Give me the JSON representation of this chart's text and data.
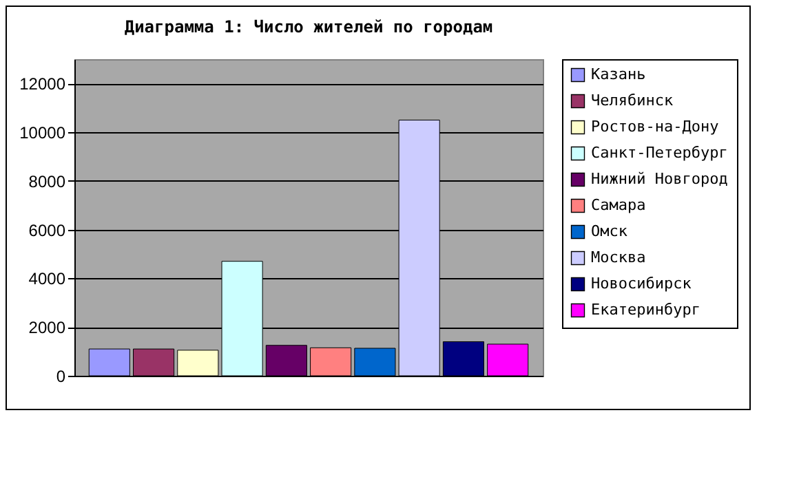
{
  "chart_data": {
    "type": "bar",
    "title": "Диаграмма 1: Число жителей по городам",
    "categories": [
      null
    ],
    "series": [
      {
        "name": "Казань",
        "color": "#9999ff",
        "values": [
          1100
        ]
      },
      {
        "name": "Челябинск",
        "color": "#993366",
        "values": [
          1100
        ]
      },
      {
        "name": "Ростов-на-Дону",
        "color": "#ffffcc",
        "values": [
          1050
        ]
      },
      {
        "name": "Санкт-Петербург",
        "color": "#ccffff",
        "values": [
          4700
        ]
      },
      {
        "name": "Нижний Новгород",
        "color": "#660066",
        "values": [
          1250
        ]
      },
      {
        "name": "Самара",
        "color": "#ff8080",
        "values": [
          1150
        ]
      },
      {
        "name": "Омск",
        "color": "#0066cc",
        "values": [
          1130
        ]
      },
      {
        "name": "Москва",
        "color": "#ccccff",
        "values": [
          10500
        ]
      },
      {
        "name": "Новосибирск",
        "color": "#000080",
        "values": [
          1400
        ]
      },
      {
        "name": "Екатеринбург",
        "color": "#ff00ff",
        "values": [
          1300
        ]
      }
    ],
    "ylim": [
      0,
      13000
    ],
    "yticks": [
      0,
      2000,
      4000,
      6000,
      8000,
      10000,
      12000
    ],
    "grid": "y",
    "legend": "right",
    "tick_labels": "y"
  }
}
